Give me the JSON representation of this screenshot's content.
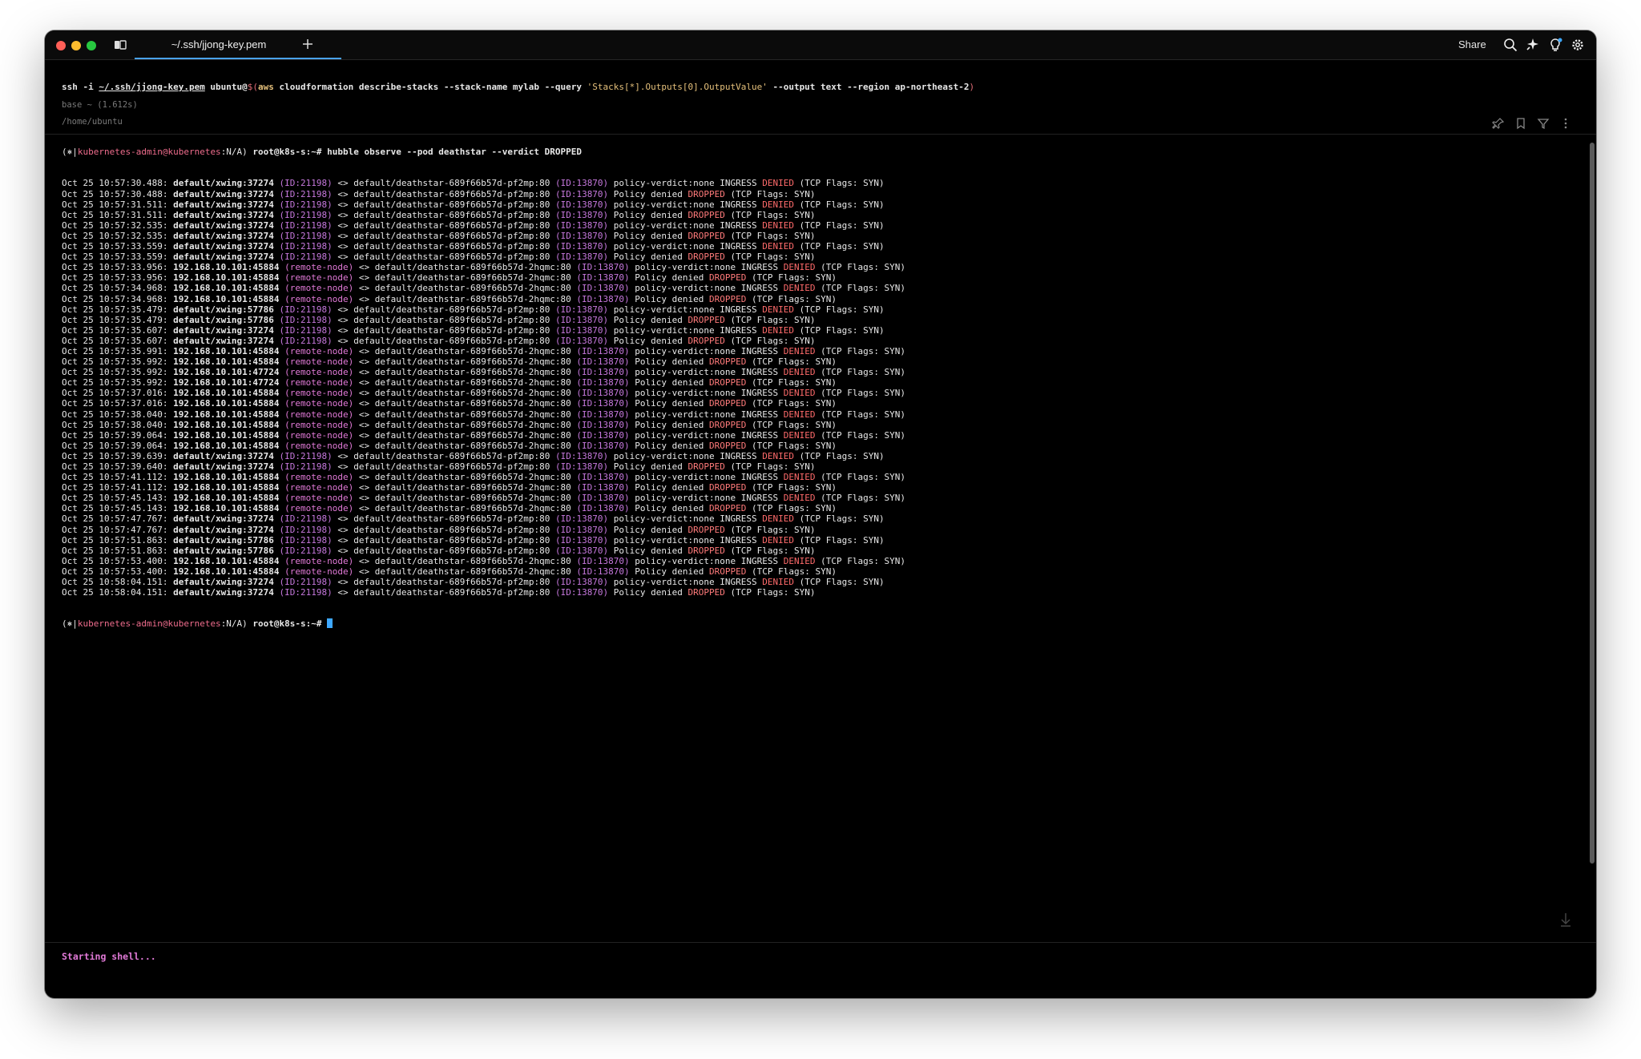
{
  "window": {
    "tab_title": "~/.ssh/jjong-key.pem",
    "share_label": "Share"
  },
  "block1": {
    "meta": "base ~ (1.612s)",
    "command": {
      "prefix": "ssh -i ",
      "keyfile": "~/.ssh/jjong-key.pem",
      "user": " ubuntu@",
      "sub_open": "$(",
      "aws": "aws",
      "args": " cloudformation describe-stacks --stack-name mylab --query ",
      "query": "'Stacks[*].Outputs[0].OutputValue'",
      "args2": " --output text --region ap-northeast-2",
      "sub_close": ")"
    }
  },
  "block2": {
    "pwd": "/home/ubuntu",
    "prompt": {
      "open": "(⎈|",
      "context": "kubernetes-admin@kubernetes",
      "ns": ":N/A)",
      "host": " root@k8s-s:~# ",
      "command": "hubble observe --pod deathstar --verdict DROPPED"
    },
    "lines": [
      [
        "Oct 25 10:57:30.488:",
        "default/xwing:37274",
        "(ID:21198)",
        "default/deathstar-689f66b57d-pf2mp:80",
        "(ID:13870)",
        "V"
      ],
      [
        "Oct 25 10:57:30.488:",
        "default/xwing:37274",
        "(ID:21198)",
        "default/deathstar-689f66b57d-pf2mp:80",
        "(ID:13870)",
        "P"
      ],
      [
        "Oct 25 10:57:31.511:",
        "default/xwing:37274",
        "(ID:21198)",
        "default/deathstar-689f66b57d-pf2mp:80",
        "(ID:13870)",
        "V"
      ],
      [
        "Oct 25 10:57:31.511:",
        "default/xwing:37274",
        "(ID:21198)",
        "default/deathstar-689f66b57d-pf2mp:80",
        "(ID:13870)",
        "P"
      ],
      [
        "Oct 25 10:57:32.535:",
        "default/xwing:37274",
        "(ID:21198)",
        "default/deathstar-689f66b57d-pf2mp:80",
        "(ID:13870)",
        "V"
      ],
      [
        "Oct 25 10:57:32.535:",
        "default/xwing:37274",
        "(ID:21198)",
        "default/deathstar-689f66b57d-pf2mp:80",
        "(ID:13870)",
        "P"
      ],
      [
        "Oct 25 10:57:33.559:",
        "default/xwing:37274",
        "(ID:21198)",
        "default/deathstar-689f66b57d-pf2mp:80",
        "(ID:13870)",
        "V"
      ],
      [
        "Oct 25 10:57:33.559:",
        "default/xwing:37274",
        "(ID:21198)",
        "default/deathstar-689f66b57d-pf2mp:80",
        "(ID:13870)",
        "P"
      ],
      [
        "Oct 25 10:57:33.956:",
        "192.168.10.101:45884",
        "(remote-node)",
        "default/deathstar-689f66b57d-2hqmc:80",
        "(ID:13870)",
        "V"
      ],
      [
        "Oct 25 10:57:33.956:",
        "192.168.10.101:45884",
        "(remote-node)",
        "default/deathstar-689f66b57d-2hqmc:80",
        "(ID:13870)",
        "P"
      ],
      [
        "Oct 25 10:57:34.968:",
        "192.168.10.101:45884",
        "(remote-node)",
        "default/deathstar-689f66b57d-2hqmc:80",
        "(ID:13870)",
        "V"
      ],
      [
        "Oct 25 10:57:34.968:",
        "192.168.10.101:45884",
        "(remote-node)",
        "default/deathstar-689f66b57d-2hqmc:80",
        "(ID:13870)",
        "P"
      ],
      [
        "Oct 25 10:57:35.479:",
        "default/xwing:57786",
        "(ID:21198)",
        "default/deathstar-689f66b57d-pf2mp:80",
        "(ID:13870)",
        "V"
      ],
      [
        "Oct 25 10:57:35.479:",
        "default/xwing:57786",
        "(ID:21198)",
        "default/deathstar-689f66b57d-pf2mp:80",
        "(ID:13870)",
        "P"
      ],
      [
        "Oct 25 10:57:35.607:",
        "default/xwing:37274",
        "(ID:21198)",
        "default/deathstar-689f66b57d-pf2mp:80",
        "(ID:13870)",
        "V"
      ],
      [
        "Oct 25 10:57:35.607:",
        "default/xwing:37274",
        "(ID:21198)",
        "default/deathstar-689f66b57d-pf2mp:80",
        "(ID:13870)",
        "P"
      ],
      [
        "Oct 25 10:57:35.991:",
        "192.168.10.101:45884",
        "(remote-node)",
        "default/deathstar-689f66b57d-2hqmc:80",
        "(ID:13870)",
        "V"
      ],
      [
        "Oct 25 10:57:35.992:",
        "192.168.10.101:45884",
        "(remote-node)",
        "default/deathstar-689f66b57d-2hqmc:80",
        "(ID:13870)",
        "P"
      ],
      [
        "Oct 25 10:57:35.992:",
        "192.168.10.101:47724",
        "(remote-node)",
        "default/deathstar-689f66b57d-2hqmc:80",
        "(ID:13870)",
        "V"
      ],
      [
        "Oct 25 10:57:35.992:",
        "192.168.10.101:47724",
        "(remote-node)",
        "default/deathstar-689f66b57d-2hqmc:80",
        "(ID:13870)",
        "P"
      ],
      [
        "Oct 25 10:57:37.016:",
        "192.168.10.101:45884",
        "(remote-node)",
        "default/deathstar-689f66b57d-2hqmc:80",
        "(ID:13870)",
        "V"
      ],
      [
        "Oct 25 10:57:37.016:",
        "192.168.10.101:45884",
        "(remote-node)",
        "default/deathstar-689f66b57d-2hqmc:80",
        "(ID:13870)",
        "P"
      ],
      [
        "Oct 25 10:57:38.040:",
        "192.168.10.101:45884",
        "(remote-node)",
        "default/deathstar-689f66b57d-2hqmc:80",
        "(ID:13870)",
        "V"
      ],
      [
        "Oct 25 10:57:38.040:",
        "192.168.10.101:45884",
        "(remote-node)",
        "default/deathstar-689f66b57d-2hqmc:80",
        "(ID:13870)",
        "P"
      ],
      [
        "Oct 25 10:57:39.064:",
        "192.168.10.101:45884",
        "(remote-node)",
        "default/deathstar-689f66b57d-2hqmc:80",
        "(ID:13870)",
        "V"
      ],
      [
        "Oct 25 10:57:39.064:",
        "192.168.10.101:45884",
        "(remote-node)",
        "default/deathstar-689f66b57d-2hqmc:80",
        "(ID:13870)",
        "P"
      ],
      [
        "Oct 25 10:57:39.639:",
        "default/xwing:37274",
        "(ID:21198)",
        "default/deathstar-689f66b57d-pf2mp:80",
        "(ID:13870)",
        "V"
      ],
      [
        "Oct 25 10:57:39.640:",
        "default/xwing:37274",
        "(ID:21198)",
        "default/deathstar-689f66b57d-pf2mp:80",
        "(ID:13870)",
        "P"
      ],
      [
        "Oct 25 10:57:41.112:",
        "192.168.10.101:45884",
        "(remote-node)",
        "default/deathstar-689f66b57d-2hqmc:80",
        "(ID:13870)",
        "V"
      ],
      [
        "Oct 25 10:57:41.112:",
        "192.168.10.101:45884",
        "(remote-node)",
        "default/deathstar-689f66b57d-2hqmc:80",
        "(ID:13870)",
        "P"
      ],
      [
        "Oct 25 10:57:45.143:",
        "192.168.10.101:45884",
        "(remote-node)",
        "default/deathstar-689f66b57d-2hqmc:80",
        "(ID:13870)",
        "V"
      ],
      [
        "Oct 25 10:57:45.143:",
        "192.168.10.101:45884",
        "(remote-node)",
        "default/deathstar-689f66b57d-2hqmc:80",
        "(ID:13870)",
        "P"
      ],
      [
        "Oct 25 10:57:47.767:",
        "default/xwing:37274",
        "(ID:21198)",
        "default/deathstar-689f66b57d-pf2mp:80",
        "(ID:13870)",
        "V"
      ],
      [
        "Oct 25 10:57:47.767:",
        "default/xwing:37274",
        "(ID:21198)",
        "default/deathstar-689f66b57d-pf2mp:80",
        "(ID:13870)",
        "P"
      ],
      [
        "Oct 25 10:57:51.863:",
        "default/xwing:57786",
        "(ID:21198)",
        "default/deathstar-689f66b57d-pf2mp:80",
        "(ID:13870)",
        "V"
      ],
      [
        "Oct 25 10:57:51.863:",
        "default/xwing:57786",
        "(ID:21198)",
        "default/deathstar-689f66b57d-pf2mp:80",
        "(ID:13870)",
        "P"
      ],
      [
        "Oct 25 10:57:53.400:",
        "192.168.10.101:45884",
        "(remote-node)",
        "default/deathstar-689f66b57d-2hqmc:80",
        "(ID:13870)",
        "V"
      ],
      [
        "Oct 25 10:57:53.400:",
        "192.168.10.101:45884",
        "(remote-node)",
        "default/deathstar-689f66b57d-2hqmc:80",
        "(ID:13870)",
        "P"
      ],
      [
        "Oct 25 10:58:04.151:",
        "default/xwing:37274",
        "(ID:21198)",
        "default/deathstar-689f66b57d-pf2mp:80",
        "(ID:13870)",
        "V"
      ],
      [
        "Oct 25 10:58:04.151:",
        "default/xwing:37274",
        "(ID:21198)",
        "default/deathstar-689f66b57d-pf2mp:80",
        "(ID:13870)",
        "P"
      ]
    ],
    "arrow": " <> ",
    "verdict_v": {
      "pre": " policy-verdict:none INGRESS ",
      "word": "DENIED",
      "post": " (TCP Flags: SYN)"
    },
    "verdict_p": {
      "pre": " Policy denied ",
      "word": "DROPPED",
      "post": " (TCP Flags: SYN)"
    }
  },
  "footer": {
    "text": "Starting shell..."
  },
  "icons": {
    "titlebar": [
      "panes-icon",
      "search-icon",
      "sparkle-icon",
      "lightbulb-icon",
      "gear-icon"
    ],
    "block_tools": [
      "pin-icon",
      "bookmark-icon",
      "filter-icon",
      "more-icon"
    ]
  },
  "colors": {
    "accent": "#4aa3f0",
    "denied": "#ff6b6b",
    "remote_node": "#e27ad8",
    "context": "#ef6d8d"
  }
}
